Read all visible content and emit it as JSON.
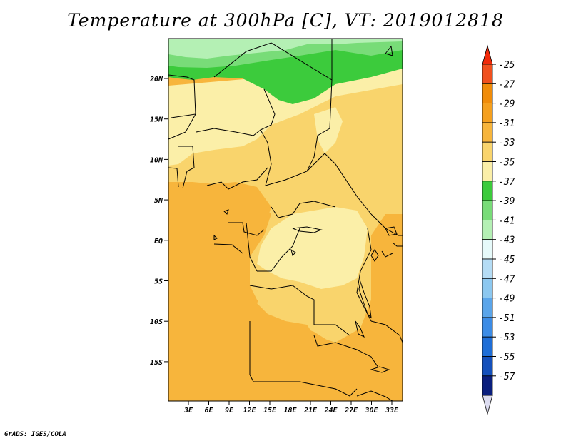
{
  "title": "Temperature at 300hPa [C], VT: 2019012818",
  "credit": "GrADS: IGES/COLA",
  "map": {
    "lat_labels": [
      "20N",
      "15N",
      "10N",
      "5N",
      "EQ",
      "5S",
      "10S",
      "15S"
    ],
    "lon_labels": [
      "3E",
      "6E",
      "9E",
      "12E",
      "15E",
      "18E",
      "21E",
      "24E",
      "27E",
      "30E",
      "33E"
    ]
  },
  "colorbar": {
    "labels": [
      "-25",
      "-27",
      "-29",
      "-31",
      "-33",
      "-35",
      "-37",
      "-39",
      "-41",
      "-43",
      "-45",
      "-47",
      "-49",
      "-51",
      "-53",
      "-55",
      "-57"
    ],
    "colors": [
      "#f0501e",
      "#f08c0a",
      "#f5a01e",
      "#f7b53c",
      "#f9d46c",
      "#fbefa8",
      "#3ccb3c",
      "#78dc78",
      "#b4f0b4",
      "#e6fafa",
      "#b4dcf5",
      "#8cc8f0",
      "#5aa5ea",
      "#3c8ce6",
      "#1e6ed7",
      "#1450bb",
      "#0a1e7d"
    ],
    "top_arrow_color": "#f02a0a",
    "bottom_arrow_color": "#dcdcf0"
  },
  "fill_colors": {
    "yellow_light": "#fbefa8",
    "yellow": "#f9d46c",
    "orange": "#f7b53c",
    "green": "#3ccb3c",
    "green_mid": "#78dc78",
    "green_light": "#b4f0b4"
  }
}
